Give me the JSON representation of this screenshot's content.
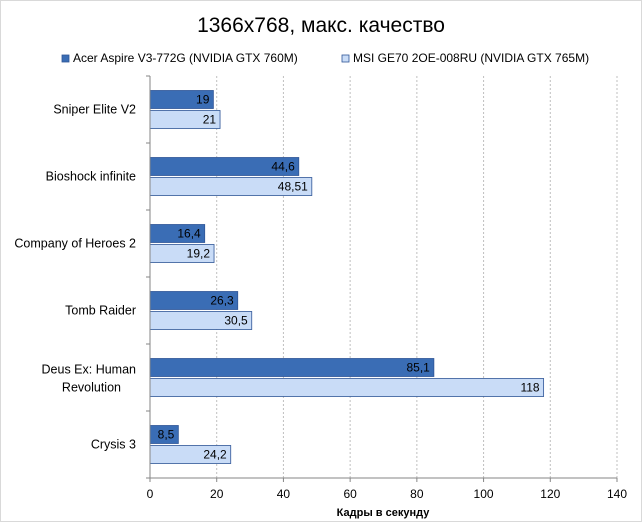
{
  "chart_data": {
    "type": "bar",
    "orientation": "horizontal",
    "title": "1366x768, макс. качество",
    "xlabel": "Кадры  в секунду",
    "ylabel": "",
    "xlim": [
      0,
      140
    ],
    "xticks": [
      0,
      20,
      40,
      60,
      80,
      100,
      120,
      140
    ],
    "grid": true,
    "legend_position": "top",
    "categories": [
      [
        "Sniper Elite V2"
      ],
      [
        "Bioshock infinite"
      ],
      [
        "Company of Heroes 2"
      ],
      [
        "Tomb Raider"
      ],
      [
        "Deus Ex: Human",
        "Revolution"
      ],
      [
        "Crysis 3"
      ]
    ],
    "series": [
      {
        "name": "Acer Aspire V3-772G (NVIDIA GTX 760M)",
        "color": "#3A6DB5",
        "values": [
          19,
          44.6,
          16.4,
          26.3,
          85.1,
          8.5
        ],
        "labels": [
          "19",
          "44,6",
          "16,4",
          "26,3",
          "85,1",
          "8,5"
        ]
      },
      {
        "name": "MSI GE70 2OE-008RU (NVIDIA GTX 765M)",
        "color": "#C9DCF7",
        "values": [
          21,
          48.51,
          19.2,
          30.5,
          118,
          24.2
        ],
        "labels": [
          "21",
          "48,51",
          "19,2",
          "30,5",
          "118",
          "24,2"
        ]
      }
    ]
  }
}
